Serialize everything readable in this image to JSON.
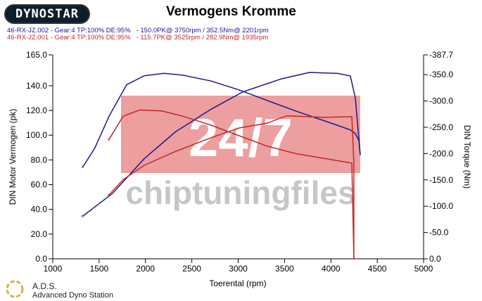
{
  "header": {
    "logo": "DYNOSTAR",
    "title": "Vermogens Kromme"
  },
  "runs": [
    {
      "text": "46-RX-JZ.002 - Gear:4 TP:100% DE:95%   - 150.0PK@ 3750rpm / 352.5Nm@ 2201rpm",
      "color": "#1a1a8c"
    },
    {
      "text": "46-RX-JZ.001 - Gear:4 TP:100% DE:95%   - 115.7PK@ 3525rpm / 282.9Nm@ 1935rpm",
      "color": "#c0282a"
    }
  ],
  "footer": {
    "brand": "A.D.S.",
    "subtitle": "Advanced Dyno Station"
  },
  "watermark": {
    "line1": "24/7",
    "line2": "chiptuningfiles"
  },
  "chart_data": {
    "type": "line",
    "xlabel": "Toerental (rpm)",
    "ylabel": "DIN Motor Vermogen (pk)",
    "y2label": "DIN Torque (Nm)",
    "xlim": [
      1000,
      5000
    ],
    "ylim": [
      0,
      165
    ],
    "y2lim": [
      0,
      387.7
    ],
    "xticks": [
      "1000",
      "1500",
      "2000",
      "2500",
      "3000",
      "3500",
      "4000",
      "4500",
      "5000"
    ],
    "yticks": [
      "0.0",
      "20.0",
      "40.0",
      "60.0",
      "80.0",
      "100.0",
      "120.0",
      "140.0",
      "165.0"
    ],
    "y2ticks": [
      "0.0",
      "-50.0",
      "-100.0",
      "-150.0",
      "-200.0",
      "-250.0",
      "-300.0",
      "-350.0",
      "-387.7"
    ],
    "grid": false,
    "series": [
      {
        "run": "46-RX-JZ.002",
        "quantity": "power",
        "axis": "left",
        "color": "#1a1a8c",
        "x": [
          1326,
          1645,
          1987,
          2328,
          2708,
          3049,
          3467,
          3770,
          4074,
          4210,
          4264,
          4317
        ],
        "y": [
          34.7,
          52.9,
          81,
          103,
          121,
          135,
          145.6,
          150.8,
          150,
          148,
          130,
          84
        ]
      },
      {
        "run": "46-RX-JZ.002",
        "quantity": "torque",
        "axis": "right",
        "color": "#1a1a8c",
        "x": [
          1326,
          1455,
          1607,
          1797,
          1987,
          2201,
          2404,
          2708,
          3011,
          3315,
          3619,
          4000,
          4210,
          4264,
          4302,
          4317
        ],
        "y": [
          175,
          211,
          271,
          331,
          348,
          352.5,
          349,
          338,
          321,
          301,
          281,
          258,
          245,
          238,
          225,
          198
        ]
      },
      {
        "run": "46-RX-JZ.001",
        "quantity": "power",
        "axis": "left",
        "color": "#c0282a",
        "x": [
          1607,
          1759,
          1987,
          2328,
          2708,
          3011,
          3315,
          3525,
          3922,
          4226,
          4248,
          4248
        ],
        "y": [
          51.8,
          64,
          75.7,
          87,
          98,
          105.8,
          109.8,
          115.7,
          114.4,
          115,
          78,
          0
        ]
      },
      {
        "run": "46-RX-JZ.001",
        "quantity": "torque",
        "axis": "right",
        "color": "#c0282a",
        "x": [
          1607,
          1759,
          1935,
          2177,
          2404,
          2708,
          3011,
          3315,
          3619,
          3922,
          4226,
          4248
        ],
        "y": [
          227,
          271,
          282.9,
          281,
          271,
          254,
          234,
          214,
          200,
          191,
          182,
          0
        ]
      }
    ]
  }
}
